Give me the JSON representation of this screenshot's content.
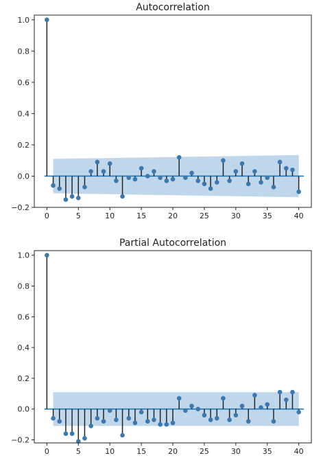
{
  "chart_data": [
    {
      "type": "stem",
      "title": "Autocorrelation",
      "xlabel": "",
      "ylabel": "",
      "xlim": [
        -2,
        42
      ],
      "ylim": [
        -0.2,
        1.03
      ],
      "xticks": [
        0,
        5,
        10,
        15,
        20,
        25,
        30,
        35,
        40
      ],
      "xtick_labels": [
        "0",
        "5",
        "10",
        "15",
        "20",
        "25",
        "30",
        "35",
        "40"
      ],
      "yticks": [
        -0.2,
        0.0,
        0.2,
        0.4,
        0.6,
        0.8,
        1.0
      ],
      "ytick_labels": [
        "−0.2",
        "0.0",
        "0.2",
        "0.4",
        "0.6",
        "0.8",
        "1.0"
      ],
      "x": [
        0,
        1,
        2,
        3,
        4,
        5,
        6,
        7,
        8,
        9,
        10,
        11,
        12,
        13,
        14,
        15,
        16,
        17,
        18,
        19,
        20,
        21,
        22,
        23,
        24,
        25,
        26,
        27,
        28,
        29,
        30,
        31,
        32,
        33,
        34,
        35,
        36,
        37,
        38,
        39,
        40
      ],
      "values": [
        1.0,
        -0.06,
        -0.08,
        -0.15,
        -0.13,
        -0.14,
        -0.07,
        0.03,
        0.09,
        0.03,
        0.08,
        -0.03,
        -0.13,
        -0.01,
        -0.02,
        0.05,
        0.0,
        0.03,
        -0.01,
        -0.03,
        -0.02,
        0.12,
        -0.01,
        0.02,
        -0.03,
        -0.05,
        -0.08,
        -0.04,
        0.1,
        -0.03,
        0.03,
        0.08,
        -0.05,
        0.03,
        -0.04,
        -0.01,
        -0.07,
        0.09,
        0.05,
        0.04,
        -0.1
      ],
      "confidence_band": {
        "x": [
          1,
          40
        ],
        "upper": [
          0.11,
          0.135
        ],
        "lower": [
          -0.11,
          -0.135
        ]
      },
      "colors": {
        "marker": "#3b78b0",
        "stem": "#222222",
        "band": "#b5cfe6",
        "baseline": "#1f77b4"
      },
      "grid": false
    },
    {
      "type": "stem",
      "title": "Partial Autocorrelation",
      "xlabel": "",
      "ylabel": "",
      "xlim": [
        -2,
        42
      ],
      "ylim": [
        -0.22,
        1.03
      ],
      "xticks": [
        0,
        5,
        10,
        15,
        20,
        25,
        30,
        35,
        40
      ],
      "xtick_labels": [
        "0",
        "5",
        "10",
        "15",
        "20",
        "25",
        "30",
        "35",
        "40"
      ],
      "yticks": [
        -0.2,
        0.0,
        0.2,
        0.4,
        0.6,
        0.8,
        1.0
      ],
      "ytick_labels": [
        "−0.2",
        "0.0",
        "0.2",
        "0.4",
        "0.6",
        "0.8",
        "1.0"
      ],
      "x": [
        0,
        1,
        2,
        3,
        4,
        5,
        6,
        7,
        8,
        9,
        10,
        11,
        12,
        13,
        14,
        15,
        16,
        17,
        18,
        19,
        20,
        21,
        22,
        23,
        24,
        25,
        26,
        27,
        28,
        29,
        30,
        31,
        32,
        33,
        34,
        35,
        36,
        37,
        38,
        39,
        40
      ],
      "values": [
        1.0,
        -0.06,
        -0.08,
        -0.16,
        -0.16,
        -0.21,
        -0.19,
        -0.11,
        -0.06,
        -0.08,
        -0.01,
        -0.07,
        -0.17,
        -0.06,
        -0.09,
        -0.02,
        -0.08,
        -0.07,
        -0.1,
        -0.1,
        -0.09,
        0.07,
        -0.01,
        0.02,
        0.0,
        -0.04,
        -0.07,
        -0.06,
        0.07,
        -0.07,
        -0.04,
        0.02,
        -0.08,
        0.09,
        0.01,
        0.03,
        -0.08,
        0.11,
        0.06,
        0.11,
        -0.02
      ],
      "confidence_band": {
        "x": [
          1,
          40
        ],
        "upper": [
          0.11,
          0.11
        ],
        "lower": [
          -0.11,
          -0.11
        ]
      },
      "colors": {
        "marker": "#3b78b0",
        "stem": "#222222",
        "band": "#b5cfe6",
        "baseline": "#1f77b4"
      },
      "grid": false
    }
  ]
}
